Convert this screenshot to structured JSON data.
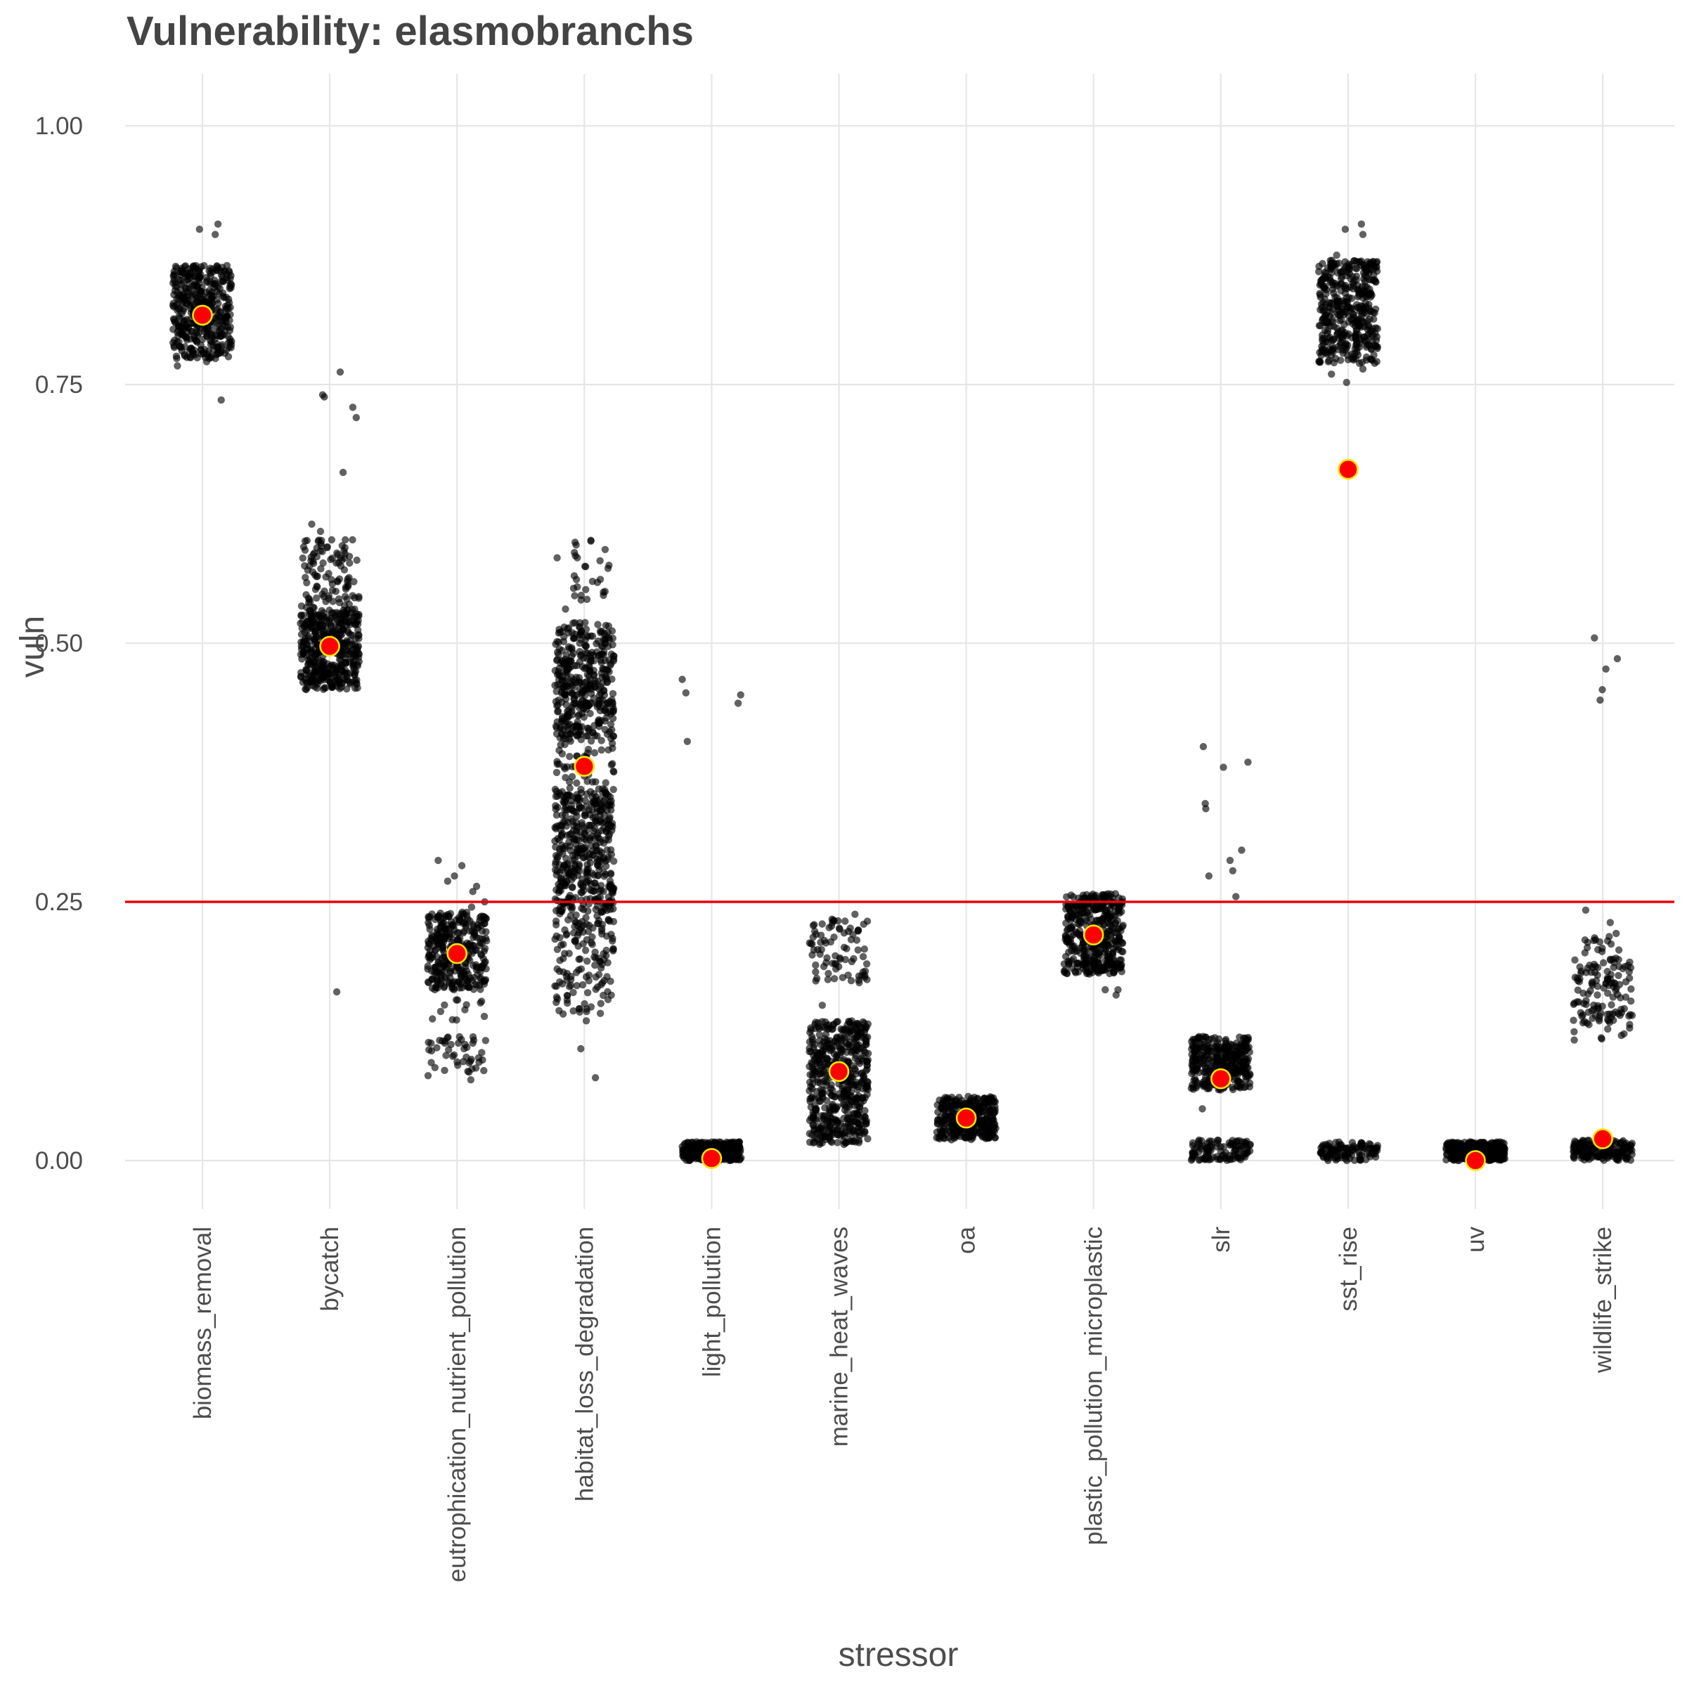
{
  "chart_data": {
    "type": "scatter",
    "title": "Vulnerability: elasmobranchs",
    "xlabel": "stressor",
    "ylabel": "vuln",
    "ylim": [
      -0.045,
      1.045
    ],
    "yticks": [
      0,
      0.25,
      0.5,
      0.75,
      1.0
    ],
    "ytick_labels": [
      "0.00",
      "0.25",
      "0.50",
      "0.75",
      "1.00"
    ],
    "categories": [
      "biomass_removal",
      "bycatch",
      "eutrophication_nutrient_pollution",
      "habitat_loss_degradation",
      "light_pollution",
      "marine_heat_waves",
      "oa",
      "plastic_pollution_microplastic",
      "slr",
      "sst_rise",
      "uv",
      "wildlife_strike"
    ],
    "grid": true,
    "reference_line": {
      "y": 0.25,
      "color": "#e8000b"
    },
    "point_color": "#000000",
    "mean_marker": {
      "fill": "#ff0000",
      "stroke": "#f5e600"
    },
    "means": [
      0.817,
      0.497,
      0.2,
      0.381,
      0.002,
      0.086,
      0.041,
      0.218,
      0.079,
      0.668,
      0.0,
      0.021
    ],
    "clusters": [
      {
        "category": "biomass_removal",
        "bands": [
          [
            0.775,
            0.865,
            420
          ]
        ],
        "outliers": [
          0.735,
          0.9,
          0.905,
          0.895,
          0.772,
          0.768
        ]
      },
      {
        "category": "bycatch",
        "bands": [
          [
            0.455,
            0.53,
            420
          ],
          [
            0.53,
            0.6,
            110
          ]
        ],
        "outliers": [
          0.762,
          0.74,
          0.738,
          0.728,
          0.718,
          0.665,
          0.615,
          0.608,
          0.163
        ]
      },
      {
        "category": "eutrophication_nutrient_pollution",
        "bands": [
          [
            0.165,
            0.24,
            330
          ],
          [
            0.085,
            0.12,
            45
          ],
          [
            0.135,
            0.165,
            12
          ]
        ],
        "outliers": [
          0.29,
          0.285,
          0.275,
          0.27,
          0.265,
          0.26,
          0.25,
          0.245,
          0.082,
          0.078
        ]
      },
      {
        "category": "habitat_loss_degradation",
        "bands": [
          [
            0.41,
            0.52,
            380
          ],
          [
            0.24,
            0.36,
            420
          ],
          [
            0.14,
            0.24,
            140
          ],
          [
            0.36,
            0.41,
            50
          ],
          [
            0.53,
            0.6,
            30
          ]
        ],
        "outliers": [
          0.108,
          0.08,
          0.135
        ]
      },
      {
        "category": "light_pollution",
        "bands": [
          [
            0.0,
            0.018,
            300
          ]
        ],
        "outliers": [
          0.465,
          0.452,
          0.45,
          0.442,
          0.405
        ]
      },
      {
        "category": "marine_heat_waves",
        "bands": [
          [
            0.015,
            0.135,
            520
          ],
          [
            0.17,
            0.235,
            80
          ]
        ],
        "outliers": [
          0.15,
          0.238
        ]
      },
      {
        "category": "oa",
        "bands": [
          [
            0.02,
            0.062,
            320
          ]
        ],
        "outliers": []
      },
      {
        "category": "plastic_pollution_microplastic",
        "bands": [
          [
            0.18,
            0.258,
            420
          ]
        ],
        "outliers": [
          0.165,
          0.16,
          0.165
        ]
      },
      {
        "category": "slr",
        "bands": [
          [
            0.068,
            0.12,
            330
          ],
          [
            0.0,
            0.02,
            110
          ]
        ],
        "outliers": [
          0.4,
          0.385,
          0.38,
          0.345,
          0.34,
          0.3,
          0.29,
          0.28,
          0.275,
          0.255,
          0.05
        ]
      },
      {
        "category": "sst_rise",
        "bands": [
          [
            0.77,
            0.87,
            420
          ],
          [
            0.0,
            0.018,
            110
          ]
        ],
        "outliers": [
          0.9,
          0.905,
          0.895,
          0.875,
          0.752,
          0.76,
          0.765
        ]
      },
      {
        "category": "uv",
        "bands": [
          [
            0.0,
            0.018,
            320
          ]
        ],
        "outliers": []
      },
      {
        "category": "wildlife_strike",
        "bands": [
          [
            0.13,
            0.19,
            110
          ],
          [
            0.0,
            0.02,
            160
          ],
          [
            0.19,
            0.22,
            25
          ],
          [
            0.115,
            0.13,
            8
          ]
        ],
        "outliers": [
          0.505,
          0.485,
          0.475,
          0.455,
          0.445,
          0.242,
          0.23
        ]
      }
    ]
  }
}
